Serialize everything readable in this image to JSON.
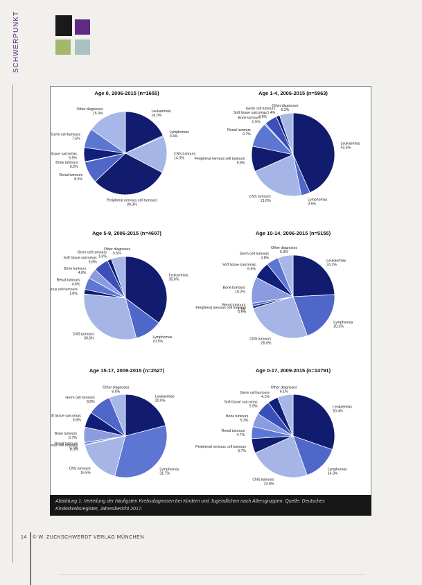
{
  "section_label": "SCHWERPUNKT",
  "brand_colors": [
    "#1a1a1a",
    "#5e2a84",
    "#a3b86c",
    "#a9c2c1"
  ],
  "charts": [
    {
      "title": "Age 0, 2006-2015 (n=1655)",
      "segments": [
        {
          "label": "Leukaemias",
          "pct": "18.0%",
          "value": 18.0,
          "color": "#111c6e"
        },
        {
          "label": "Lymphomas",
          "pct": "0.4%",
          "value": 0.4,
          "color": "#3a4fb8"
        },
        {
          "label": "CNS tumours",
          "pct": "14.3%",
          "value": 14.3,
          "color": "#a5b6e6"
        },
        {
          "label": "Peripheral nervous cell tumours",
          "pct": "30.3%",
          "value": 30.3,
          "color": "#111c6e"
        },
        {
          "label": "Renal tumours",
          "pct": "8.5%",
          "value": 8.5,
          "color": "#4e67c8"
        },
        {
          "label": "Bone tumours",
          "pct": "0.2%",
          "value": 0.2,
          "color": "#8a9be0"
        },
        {
          "label": "Soft tissue sarcomas",
          "pct": "5.5%",
          "value": 5.5,
          "color": "#121f7a"
        },
        {
          "label": "Germ cell tumours",
          "pct": "7.5%",
          "value": 7.5,
          "color": "#5c76d2"
        },
        {
          "label": "Other diagnoses",
          "pct": "15.3%",
          "value": 15.3,
          "color": "#a7b7e8"
        }
      ]
    },
    {
      "title": "Age 1-4, 2006-2015 (n=5963)",
      "segments": [
        {
          "label": "Leukaemias",
          "pct": "43.5%",
          "value": 43.5,
          "color": "#111c6e"
        },
        {
          "label": "Lymphomas",
          "pct": "3.5%",
          "value": 3.5,
          "color": "#4e67c8"
        },
        {
          "label": "CNS tumours",
          "pct": "21.6%",
          "value": 21.6,
          "color": "#a5b6e6"
        },
        {
          "label": "Peripheral nervous cell tumours",
          "pct": "9.9%",
          "value": 9.9,
          "color": "#111c6e"
        },
        {
          "label": "Renal tumours",
          "pct": "9.7%",
          "value": 9.7,
          "color": "#5c76d2"
        },
        {
          "label": "Bone tumours",
          "pct": "0.5%",
          "value": 0.5,
          "color": "#8a9be0"
        },
        {
          "label": "Soft tissue sarcomas",
          "pct": "4.9%",
          "value": 4.9,
          "color": "#3a4fb8"
        },
        {
          "label": "Germ cell tumours",
          "pct": "1.4%",
          "value": 1.4,
          "color": "#111c6e"
        },
        {
          "label": "Other diagnoses",
          "pct": "5.3%",
          "value": 5.3,
          "color": "#a7b7e8"
        }
      ]
    },
    {
      "title": "Age 5-9, 2006-2015 (n=4607)",
      "segments": [
        {
          "label": "Leukaemias",
          "pct": "35.0%",
          "value": 35.0,
          "color": "#111c6e"
        },
        {
          "label": "Lymphomas",
          "pct": "10.5%",
          "value": 10.5,
          "color": "#4e67c8"
        },
        {
          "label": "CNS tumours",
          "pct": "30.6%",
          "value": 30.6,
          "color": "#a5b6e6"
        },
        {
          "label": "Peripheral nervous cell tumours",
          "pct": "1.8%",
          "value": 1.8,
          "color": "#111c6e"
        },
        {
          "label": "Renal tumours",
          "pct": "4.6%",
          "value": 4.6,
          "color": "#5c76d2"
        },
        {
          "label": "Bone tumours",
          "pct": "4.0%",
          "value": 4.0,
          "color": "#8a9be0"
        },
        {
          "label": "Soft tissue sarcomas",
          "pct": "5.8%",
          "value": 5.8,
          "color": "#3a4fb8"
        },
        {
          "label": "Germ cell tumours",
          "pct": "1.6%",
          "value": 1.6,
          "color": "#111c6e"
        },
        {
          "label": "Other diagnoses",
          "pct": "5.5%",
          "value": 5.5,
          "color": "#a7b7e8"
        }
      ]
    },
    {
      "title": "Age 10-14, 2006-2015 (n=5155)",
      "segments": [
        {
          "label": "Leukaemias",
          "pct": "24.2%",
          "value": 24.2,
          "color": "#111c6e"
        },
        {
          "label": "Lymphomas",
          "pct": "20.2%",
          "value": 20.2,
          "color": "#4e67c8"
        },
        {
          "label": "CNS tumours",
          "pct": "26.0%",
          "value": 26.0,
          "color": "#a5b6e6"
        },
        {
          "label": "Peripheral nervous cell tumours",
          "pct": "0.9%",
          "value": 0.9,
          "color": "#111c6e"
        },
        {
          "label": "Renal tumours",
          "pct": "1.1%",
          "value": 1.1,
          "color": "#5c76d2"
        },
        {
          "label": "Bone tumours",
          "pct": "10.2%",
          "value": 10.2,
          "color": "#8a9be0"
        },
        {
          "label": "Soft tissue sarcomas",
          "pct": "6.6%",
          "value": 6.6,
          "color": "#121f7a"
        },
        {
          "label": "Germ cell tumours",
          "pct": "4.8%",
          "value": 4.8,
          "color": "#5c76d2"
        },
        {
          "label": "Other diagnoses",
          "pct": "5.9%",
          "value": 5.9,
          "color": "#a7b7e8"
        }
      ]
    },
    {
      "title": "Age 15-17, 2009-2015 (n=2527)",
      "segments": [
        {
          "label": "Leukaemias",
          "pct": "20.0%",
          "value": 20.0,
          "color": "#111c6e"
        },
        {
          "label": "Lymphomas",
          "pct": "31.7%",
          "value": 31.7,
          "color": "#5c76d2"
        },
        {
          "label": "CNS tumours",
          "pct": "16.5%",
          "value": 16.5,
          "color": "#a5b6e6"
        },
        {
          "label": "Peripheral nervous cell tumours",
          "pct": "0.3%",
          "value": 0.3,
          "color": "#111c6e"
        },
        {
          "label": "Renal tumours",
          "pct": "0.7%",
          "value": 0.7,
          "color": "#5c76d2"
        },
        {
          "label": "Bone tumours",
          "pct": "5.7%",
          "value": 5.7,
          "color": "#8a9be0"
        },
        {
          "label": "Soft tissue sarcomas",
          "pct": "5.8%",
          "value": 5.8,
          "color": "#121f7a"
        },
        {
          "label": "Germ cell tumours",
          "pct": "8.8%",
          "value": 8.8,
          "color": "#4e67c8"
        },
        {
          "label": "Other diagnoses",
          "pct": "6.0%",
          "value": 6.0,
          "color": "#a7b7e8"
        }
      ]
    },
    {
      "title": "Age 0-17, 2009-2015 (n=14791)",
      "segments": [
        {
          "label": "Leukaemias",
          "pct": "30.4%",
          "value": 30.4,
          "color": "#111c6e"
        },
        {
          "label": "Lymphomas",
          "pct": "14.3%",
          "value": 14.3,
          "color": "#4e67c8"
        },
        {
          "label": "CNS tumours",
          "pct": "23.8%",
          "value": 23.8,
          "color": "#a5b6e6"
        },
        {
          "label": "Peripheral nervous cell tumours",
          "pct": "5.7%",
          "value": 5.7,
          "color": "#111c6e"
        },
        {
          "label": "Renal tumours",
          "pct": "4.7%",
          "value": 4.7,
          "color": "#5c76d2"
        },
        {
          "label": "Bone tumours",
          "pct": "5.3%",
          "value": 5.3,
          "color": "#8a9be0"
        },
        {
          "label": "Soft tissue sarcomas",
          "pct": "5.9%",
          "value": 5.9,
          "color": "#3a4fb8"
        },
        {
          "label": "Germ cell tumours",
          "pct": "4.1%",
          "value": 4.1,
          "color": "#121f7a"
        },
        {
          "label": "Other diagnoses",
          "pct": "6.1%",
          "value": 6.1,
          "color": "#a7b7e8"
        }
      ]
    }
  ],
  "caption": "Abbildung 1: Verteilung der häufigsten Krebsdiagnosen bei Kindern und Jugendlichen nach Altersgruppen. Quelle: Deutsches Kinderkrebsregister, Jahresbericht 2017.",
  "footer": {
    "page": "14",
    "text": "© W. ZUCKSCHWERDT VERLAG MÜNCHEN"
  }
}
